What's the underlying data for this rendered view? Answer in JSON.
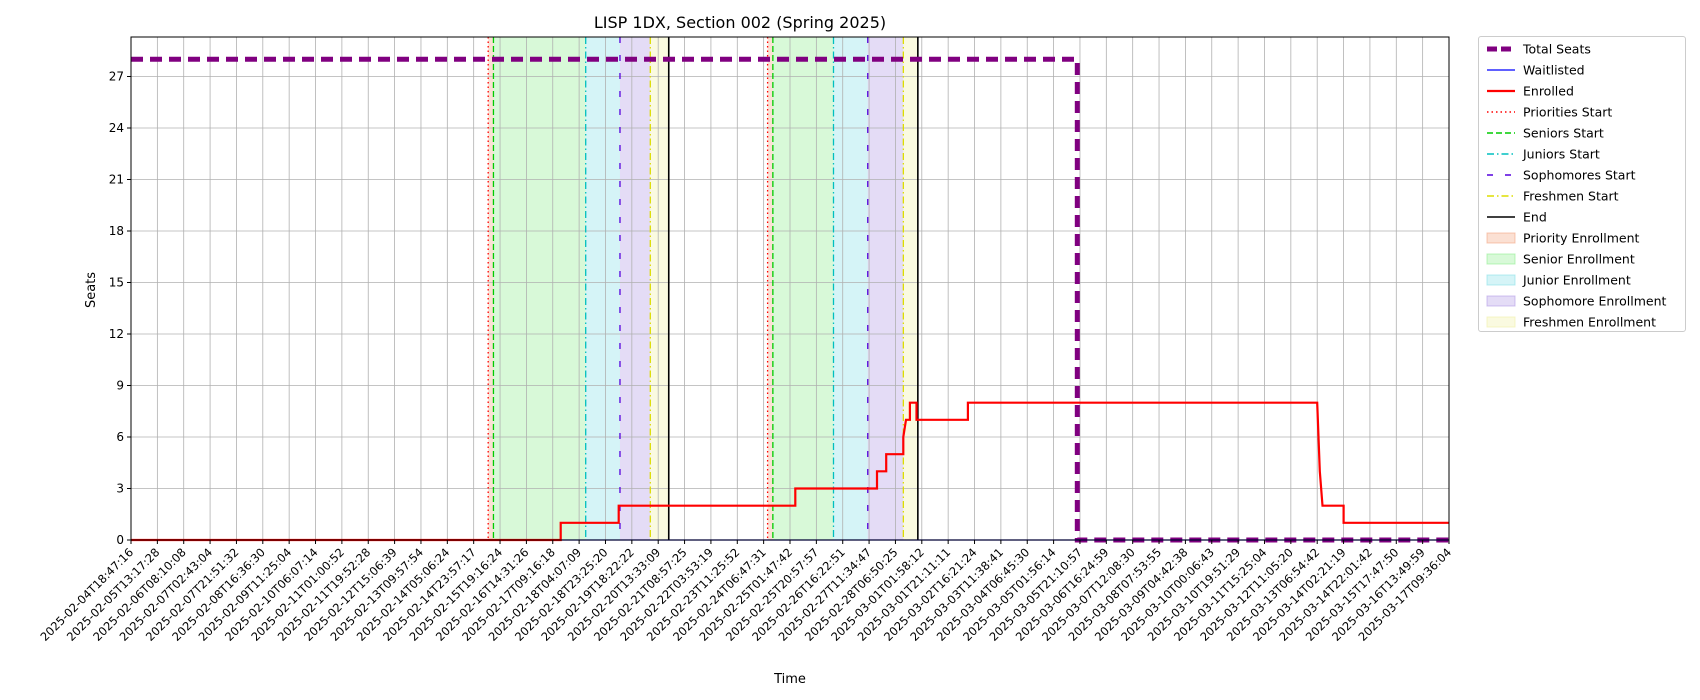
{
  "chart_data": {
    "type": "line",
    "title": "LISP 1DX, Section 002 (Spring 2025)",
    "xlabel": "Time",
    "ylabel": "Seats",
    "grid": true,
    "legend_position": "outside-right",
    "x_range": [
      "2025-02-04T18:47:16",
      "2025-03-17T09:36:04"
    ],
    "ylim": [
      0,
      29.3
    ],
    "y_ticks": [
      0,
      3,
      6,
      9,
      12,
      15,
      18,
      21,
      24,
      27
    ],
    "x_tick_labels": [
      "2025-02-04T18:47:16",
      "2025-02-05T13:17:28",
      "2025-02-06T08:10:08",
      "2025-02-07T02:43:04",
      "2025-02-07T21:51:32",
      "2025-02-08T16:36:30",
      "2025-02-09T11:25:04",
      "2025-02-10T06:07:14",
      "2025-02-11T01:00:52",
      "2025-02-11T19:52:28",
      "2025-02-12T15:06:39",
      "2025-02-13T09:57:54",
      "2025-02-14T05:06:24",
      "2025-02-14T23:57:17",
      "2025-02-15T19:16:24",
      "2025-02-16T14:31:26",
      "2025-02-17T09:16:18",
      "2025-02-18T04:07:09",
      "2025-02-18T23:25:20",
      "2025-02-19T18:22:22",
      "2025-02-20T13:33:09",
      "2025-02-21T08:57:25",
      "2025-02-22T03:53:19",
      "2025-02-23T11:25:52",
      "2025-02-24T06:47:31",
      "2025-02-25T01:47:42",
      "2025-02-25T20:57:57",
      "2025-02-26T16:22:51",
      "2025-02-27T11:34:47",
      "2025-02-28T06:50:25",
      "2025-03-01T01:58:12",
      "2025-03-01T21:11:11",
      "2025-03-02T16:21:24",
      "2025-03-03T11:38:41",
      "2025-03-04T06:45:30",
      "2025-03-05T01:56:14",
      "2025-03-05T21:10:57",
      "2025-03-06T16:24:59",
      "2025-03-07T12:08:30",
      "2025-03-08T07:53:55",
      "2025-03-09T04:42:38",
      "2025-03-10T00:06:43",
      "2025-03-10T19:51:29",
      "2025-03-11T15:25:04",
      "2025-03-12T11:05:20",
      "2025-03-13T06:54:42",
      "2025-03-14T02:21:19",
      "2025-03-14T22:01:42",
      "2025-03-15T17:47:50",
      "2025-03-16T13:49:59",
      "2025-03-17T09:36:04"
    ],
    "series": [
      {
        "name": "Total Seats",
        "color": "#800080",
        "style": "dashed-thick",
        "points": [
          [
            0,
            28
          ],
          [
            35.9,
            28
          ],
          [
            35.9,
            0
          ],
          [
            50,
            0
          ]
        ]
      },
      {
        "name": "Waitlisted",
        "color": "#0000ff",
        "style": "solid",
        "points": [
          [
            0,
            0
          ],
          [
            50,
            0
          ]
        ]
      },
      {
        "name": "Enrolled",
        "color": "#ff0000",
        "style": "solid",
        "points": [
          [
            0,
            0
          ],
          [
            16.3,
            0
          ],
          [
            16.3,
            1
          ],
          [
            18.5,
            1
          ],
          [
            18.5,
            2
          ],
          [
            25.2,
            2
          ],
          [
            25.2,
            3
          ],
          [
            28.3,
            3
          ],
          [
            28.3,
            4
          ],
          [
            28.65,
            4
          ],
          [
            28.65,
            5
          ],
          [
            29.3,
            5
          ],
          [
            29.3,
            6
          ],
          [
            29.4,
            7
          ],
          [
            29.55,
            7
          ],
          [
            29.55,
            8
          ],
          [
            29.8,
            8
          ],
          [
            29.8,
            7
          ],
          [
            31.75,
            7
          ],
          [
            31.75,
            8
          ],
          [
            45.0,
            8
          ],
          [
            45.1,
            4
          ],
          [
            45.2,
            2
          ],
          [
            46.0,
            2
          ],
          [
            46.0,
            1
          ],
          [
            50,
            1
          ]
        ]
      }
    ],
    "markers": [
      {
        "name": "Priorities Start",
        "color": "#ff0000",
        "style": "dotted",
        "x": [
          13.55,
          24.15
        ]
      },
      {
        "name": "Seniors Start",
        "color": "#00cc00",
        "style": "dashed",
        "x": [
          13.75,
          24.35
        ]
      },
      {
        "name": "Juniors Start",
        "color": "#00bfbf",
        "style": "dashdot",
        "x": [
          17.25,
          26.65
        ]
      },
      {
        "name": "Sophomores Start",
        "color": "#5500dd",
        "style": "loosely-dashed",
        "x": [
          18.55,
          27.95
        ]
      },
      {
        "name": "Freshmen Start",
        "color": "#dddd00",
        "style": "dashdot",
        "x": [
          19.7,
          29.3
        ]
      },
      {
        "name": "End",
        "color": "#000000",
        "style": "solid",
        "x": [
          20.4,
          29.85
        ]
      }
    ],
    "periods": [
      {
        "name": "Priority Enrollment",
        "color": "#f4a582",
        "ranges": [
          [
            13.55,
            13.75
          ],
          [
            24.15,
            24.35
          ]
        ]
      },
      {
        "name": "Senior Enrollment",
        "color": "#90ee90",
        "ranges": [
          [
            13.75,
            17.25
          ],
          [
            24.35,
            26.65
          ]
        ]
      },
      {
        "name": "Junior Enrollment",
        "color": "#87dfe8",
        "ranges": [
          [
            17.25,
            18.55
          ],
          [
            26.65,
            27.95
          ]
        ]
      },
      {
        "name": "Sophomore Enrollment",
        "color": "#b39be6",
        "ranges": [
          [
            18.55,
            19.7
          ],
          [
            27.95,
            29.3
          ]
        ]
      },
      {
        "name": "Freshmen Enrollment",
        "color": "#f0f0a6",
        "ranges": [
          [
            19.7,
            20.4
          ],
          [
            29.3,
            29.85
          ]
        ]
      }
    ],
    "legend": [
      "Total Seats",
      "Waitlisted",
      "Enrolled",
      "Priorities Start",
      "Seniors Start",
      "Juniors Start",
      "Sophomores Start",
      "Freshmen Start",
      "End",
      "Priority Enrollment",
      "Senior Enrollment",
      "Junior Enrollment",
      "Sophomore Enrollment",
      "Freshmen Enrollment"
    ]
  }
}
